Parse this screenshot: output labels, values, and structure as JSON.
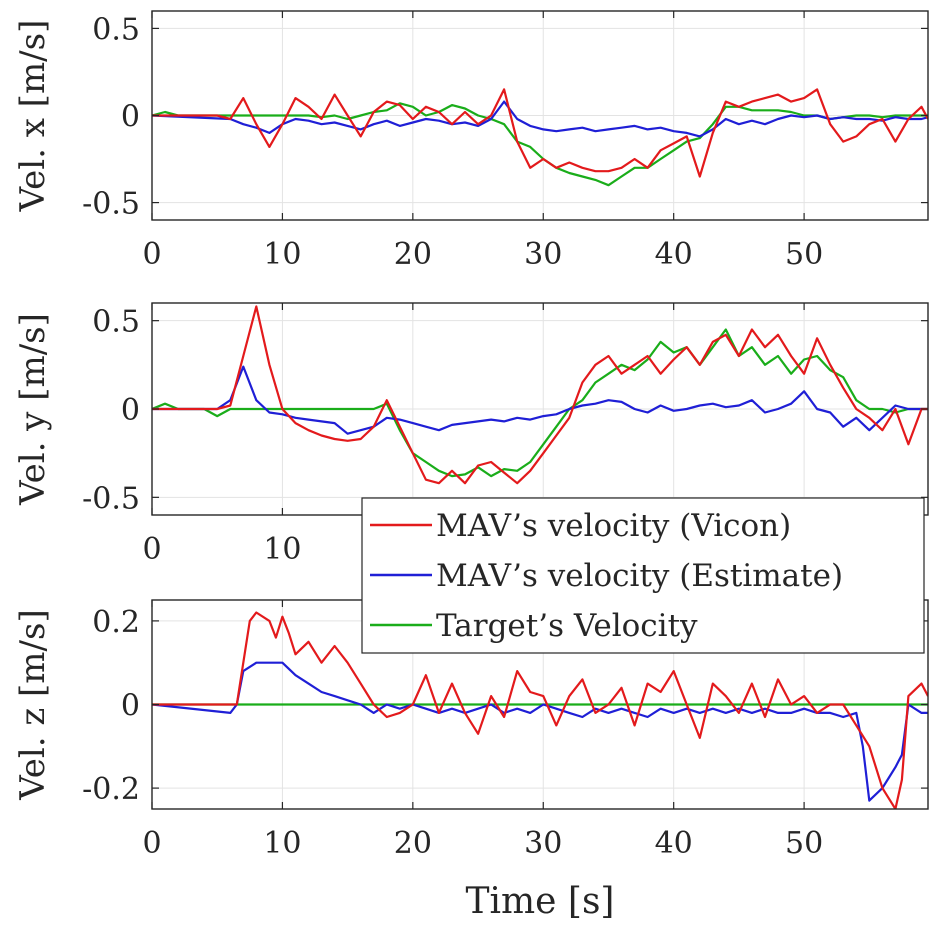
{
  "chart_data": [
    {
      "type": "line",
      "ylabel": "Vel. x [m/s]",
      "xlabel": "",
      "xlim": [
        0,
        59.5
      ],
      "ylim": [
        -0.6,
        0.6
      ],
      "xticks": [
        0,
        10,
        20,
        30,
        40,
        50
      ],
      "yticks": [
        0.5,
        0,
        -0.5
      ],
      "xtick_labels": [
        "0",
        "10",
        "20",
        "30",
        "40",
        "50"
      ],
      "ytick_labels": [
        "0.5",
        "0",
        "-0.5"
      ],
      "grid": true,
      "series": [
        {
          "name": "MAV's velocity (Vicon)",
          "color": "#e31a1c",
          "x": [
            0,
            5,
            6,
            7,
            8,
            9,
            10,
            11,
            12,
            13,
            14,
            15,
            16,
            17,
            18,
            19,
            20,
            21,
            22,
            23,
            24,
            25,
            26,
            27,
            28,
            29,
            30,
            31,
            32,
            33,
            34,
            35,
            36,
            37,
            38,
            39,
            40,
            41,
            42,
            43,
            44,
            45,
            46,
            47,
            48,
            49,
            50,
            51,
            52,
            53,
            54,
            55,
            56,
            57,
            58,
            59,
            59.5
          ],
          "y": [
            0,
            0,
            -0.02,
            0.1,
            -0.05,
            -0.18,
            -0.05,
            0.1,
            0.05,
            -0.02,
            0.12,
            0.0,
            -0.12,
            0.02,
            0.08,
            0.06,
            -0.02,
            0.05,
            0.02,
            -0.05,
            0.02,
            -0.05,
            0.0,
            0.15,
            -0.15,
            -0.3,
            -0.25,
            -0.3,
            -0.27,
            -0.3,
            -0.32,
            -0.32,
            -0.3,
            -0.25,
            -0.3,
            -0.2,
            -0.16,
            -0.12,
            -0.35,
            -0.1,
            0.08,
            0.05,
            0.08,
            0.1,
            0.12,
            0.08,
            0.1,
            0.15,
            -0.05,
            -0.15,
            -0.12,
            -0.05,
            -0.02,
            -0.15,
            -0.02,
            0.05,
            -0.02
          ]
        },
        {
          "name": "MAV's velocity (Estimate)",
          "color": "#1f1fd6",
          "x": [
            0,
            6,
            7,
            8,
            9,
            10,
            11,
            12,
            13,
            14,
            15,
            16,
            17,
            18,
            19,
            20,
            21,
            22,
            23,
            24,
            25,
            26,
            27,
            28,
            29,
            30,
            31,
            32,
            33,
            34,
            35,
            36,
            37,
            38,
            39,
            40,
            41,
            42,
            43,
            44,
            45,
            46,
            47,
            48,
            49,
            50,
            51,
            52,
            53,
            54,
            55,
            56,
            57,
            58,
            59,
            59.5
          ],
          "y": [
            0,
            -0.02,
            -0.05,
            -0.07,
            -0.1,
            -0.05,
            -0.02,
            -0.03,
            -0.05,
            -0.04,
            -0.06,
            -0.08,
            -0.05,
            -0.03,
            -0.06,
            -0.04,
            -0.02,
            -0.03,
            -0.05,
            -0.04,
            -0.06,
            -0.02,
            0.08,
            -0.02,
            -0.06,
            -0.08,
            -0.09,
            -0.08,
            -0.07,
            -0.09,
            -0.08,
            -0.07,
            -0.06,
            -0.08,
            -0.07,
            -0.09,
            -0.1,
            -0.12,
            -0.08,
            -0.02,
            -0.05,
            -0.03,
            -0.05,
            -0.02,
            0.0,
            -0.01,
            0.0,
            -0.02,
            -0.01,
            -0.02,
            -0.02,
            -0.03,
            -0.01,
            -0.02,
            -0.02,
            -0.01
          ]
        },
        {
          "name": "Target's Velocity",
          "color": "#1aad1a",
          "x": [
            0,
            1,
            2,
            3,
            4,
            5,
            6,
            7,
            8,
            9,
            10,
            11,
            12,
            13,
            14,
            15,
            16,
            17,
            18,
            19,
            20,
            21,
            22,
            23,
            24,
            25,
            26,
            27,
            28,
            29,
            30,
            31,
            32,
            33,
            34,
            35,
            36,
            37,
            38,
            39,
            40,
            41,
            42,
            43,
            44,
            45,
            46,
            47,
            48,
            49,
            50,
            51,
            52,
            53,
            54,
            55,
            56,
            57,
            58,
            59,
            59.5
          ],
          "y": [
            0,
            0.02,
            0,
            0,
            0,
            0,
            0,
            0,
            0,
            0,
            0,
            0,
            0,
            -0.01,
            0,
            -0.02,
            0,
            0.02,
            0.03,
            0.07,
            0.05,
            0,
            0.02,
            0.06,
            0.04,
            0.0,
            -0.02,
            -0.05,
            -0.15,
            -0.18,
            -0.25,
            -0.3,
            -0.33,
            -0.35,
            -0.37,
            -0.4,
            -0.35,
            -0.3,
            -0.3,
            -0.25,
            -0.2,
            -0.15,
            -0.13,
            -0.05,
            0.05,
            0.05,
            0.03,
            0.03,
            0.03,
            0.02,
            0.0,
            0.0,
            -0.02,
            -0.01,
            0.0,
            0.0,
            -0.01,
            0.0,
            0.0,
            0.0,
            0.0
          ]
        }
      ]
    },
    {
      "type": "line",
      "ylabel": "Vel. y [m/s]",
      "xlabel": "",
      "xlim": [
        0,
        59.5
      ],
      "ylim": [
        -0.6,
        0.6
      ],
      "xticks": [
        0,
        10,
        20,
        30,
        40,
        50
      ],
      "yticks": [
        0.5,
        0,
        -0.5
      ],
      "xtick_labels": [
        "0",
        "10",
        "20",
        "30",
        "40",
        "50"
      ],
      "ytick_labels": [
        "0.5",
        "0",
        "-0.5"
      ],
      "grid": true,
      "series": [
        {
          "name": "MAV's velocity (Vicon)",
          "color": "#e31a1c",
          "x": [
            0,
            5,
            6,
            7,
            8,
            9,
            10,
            11,
            12,
            13,
            14,
            15,
            16,
            17,
            18,
            19,
            20,
            21,
            22,
            23,
            24,
            25,
            26,
            27,
            28,
            29,
            30,
            31,
            32,
            33,
            34,
            35,
            36,
            37,
            38,
            39,
            40,
            41,
            42,
            43,
            44,
            45,
            46,
            47,
            48,
            49,
            50,
            51,
            52,
            53,
            54,
            55,
            56,
            57,
            58,
            59,
            59.5
          ],
          "y": [
            0,
            0,
            0.02,
            0.3,
            0.58,
            0.25,
            0.0,
            -0.08,
            -0.12,
            -0.15,
            -0.17,
            -0.18,
            -0.17,
            -0.1,
            0.05,
            -0.1,
            -0.25,
            -0.4,
            -0.42,
            -0.35,
            -0.42,
            -0.32,
            -0.3,
            -0.36,
            -0.42,
            -0.35,
            -0.25,
            -0.15,
            -0.05,
            0.15,
            0.25,
            0.3,
            0.2,
            0.25,
            0.3,
            0.2,
            0.28,
            0.35,
            0.25,
            0.38,
            0.42,
            0.3,
            0.45,
            0.35,
            0.42,
            0.3,
            0.2,
            0.4,
            0.25,
            0.12,
            0.0,
            -0.05,
            -0.12,
            0.0,
            -0.2,
            0.0,
            0.0
          ]
        },
        {
          "name": "MAV's velocity (Estimate)",
          "color": "#1f1fd6",
          "x": [
            0,
            5,
            6,
            7,
            8,
            9,
            10,
            11,
            12,
            13,
            14,
            15,
            16,
            17,
            18,
            19,
            20,
            21,
            22,
            23,
            24,
            25,
            26,
            27,
            28,
            29,
            30,
            31,
            32,
            33,
            34,
            35,
            36,
            37,
            38,
            39,
            40,
            41,
            42,
            43,
            44,
            45,
            46,
            47,
            48,
            49,
            50,
            51,
            52,
            53,
            54,
            55,
            56,
            57,
            58,
            59,
            59.5
          ],
          "y": [
            0,
            0,
            0.05,
            0.24,
            0.05,
            -0.02,
            -0.03,
            -0.05,
            -0.06,
            -0.07,
            -0.08,
            -0.14,
            -0.12,
            -0.1,
            -0.05,
            -0.06,
            -0.08,
            -0.1,
            -0.12,
            -0.09,
            -0.08,
            -0.07,
            -0.06,
            -0.07,
            -0.05,
            -0.06,
            -0.04,
            -0.03,
            0.0,
            0.02,
            0.03,
            0.05,
            0.04,
            0.0,
            -0.02,
            0.02,
            -0.01,
            0.0,
            0.02,
            0.03,
            0.01,
            0.02,
            0.05,
            -0.02,
            0.0,
            0.03,
            0.1,
            0.0,
            -0.02,
            -0.1,
            -0.05,
            -0.12,
            -0.05,
            0.02,
            0.0,
            0.0,
            0.0
          ]
        },
        {
          "name": "Target's Velocity",
          "color": "#1aad1a",
          "x": [
            0,
            1,
            2,
            3,
            4,
            5,
            6,
            7,
            8,
            9,
            10,
            11,
            12,
            13,
            14,
            15,
            16,
            17,
            18,
            19,
            20,
            21,
            22,
            23,
            24,
            25,
            26,
            27,
            28,
            29,
            30,
            31,
            32,
            33,
            34,
            35,
            36,
            37,
            38,
            39,
            40,
            41,
            42,
            43,
            44,
            45,
            46,
            47,
            48,
            49,
            50,
            51,
            52,
            53,
            54,
            55,
            56,
            57,
            58,
            59,
            59.5
          ],
          "y": [
            0,
            0.03,
            0,
            0,
            0,
            -0.04,
            0,
            0,
            0,
            0,
            0,
            0,
            0,
            0,
            0,
            0,
            0.0,
            0.0,
            0.03,
            -0.12,
            -0.25,
            -0.3,
            -0.35,
            -0.38,
            -0.37,
            -0.33,
            -0.38,
            -0.34,
            -0.35,
            -0.3,
            -0.2,
            -0.1,
            0.0,
            0.05,
            0.15,
            0.2,
            0.25,
            0.22,
            0.28,
            0.38,
            0.32,
            0.35,
            0.25,
            0.35,
            0.45,
            0.3,
            0.35,
            0.25,
            0.3,
            0.2,
            0.28,
            0.3,
            0.22,
            0.18,
            0.05,
            0.0,
            0.0,
            -0.02,
            0.0,
            0.0,
            0.0
          ]
        }
      ]
    },
    {
      "type": "line",
      "ylabel": "Vel. z [m/s]",
      "xlabel": "Time [s]",
      "xlim": [
        0,
        59.5
      ],
      "ylim": [
        -0.25,
        0.25
      ],
      "xticks": [
        0,
        10,
        20,
        30,
        40,
        50
      ],
      "yticks": [
        0.2,
        0,
        -0.2
      ],
      "xtick_labels": [
        "0",
        "10",
        "20",
        "30",
        "40",
        "50"
      ],
      "ytick_labels": [
        "0.2",
        "0",
        "-0.2"
      ],
      "grid": true,
      "series": [
        {
          "name": "MAV's velocity (Vicon)",
          "color": "#e31a1c",
          "x": [
            0,
            6,
            6.5,
            7,
            7.5,
            8,
            9,
            9.5,
            10,
            10.5,
            11,
            12,
            13,
            14,
            15,
            16,
            17,
            18,
            19,
            20,
            21,
            22,
            23,
            24,
            25,
            26,
            27,
            28,
            29,
            30,
            31,
            32,
            33,
            34,
            35,
            36,
            37,
            38,
            39,
            40,
            41,
            42,
            43,
            44,
            45,
            46,
            47,
            48,
            49,
            50,
            51,
            52,
            53,
            54,
            55,
            56,
            57,
            57.5,
            58,
            59,
            59.5
          ],
          "y": [
            0,
            0,
            0.0,
            0.1,
            0.2,
            0.22,
            0.2,
            0.16,
            0.21,
            0.17,
            0.12,
            0.15,
            0.1,
            0.14,
            0.1,
            0.05,
            0.0,
            -0.03,
            -0.02,
            0.0,
            0.07,
            -0.02,
            0.05,
            -0.02,
            -0.07,
            0.02,
            -0.03,
            0.08,
            0.03,
            0.02,
            -0.05,
            0.02,
            0.06,
            -0.02,
            0.0,
            0.04,
            -0.05,
            0.05,
            0.03,
            0.08,
            0.0,
            -0.08,
            0.05,
            0.02,
            -0.02,
            0.05,
            -0.03,
            0.06,
            0.0,
            0.02,
            -0.02,
            0.0,
            0.0,
            -0.05,
            -0.1,
            -0.2,
            -0.25,
            -0.18,
            0.02,
            0.05,
            0.02
          ]
        },
        {
          "name": "MAV's velocity (Estimate)",
          "color": "#1f1fd6",
          "x": [
            0,
            6,
            6.5,
            7,
            8,
            9,
            10,
            11,
            12,
            13,
            14,
            15,
            16,
            17,
            18,
            19,
            20,
            21,
            22,
            23,
            24,
            25,
            26,
            27,
            28,
            29,
            30,
            31,
            32,
            33,
            34,
            35,
            36,
            37,
            38,
            39,
            40,
            41,
            42,
            43,
            44,
            45,
            46,
            47,
            48,
            49,
            50,
            51,
            52,
            53,
            54,
            54.5,
            55,
            56,
            57,
            57.5,
            58,
            59,
            59.5
          ],
          "y": [
            0,
            -0.02,
            0.0,
            0.08,
            0.1,
            0.1,
            0.1,
            0.07,
            0.05,
            0.03,
            0.02,
            0.01,
            0.0,
            -0.02,
            0.0,
            -0.01,
            0.0,
            -0.01,
            -0.02,
            -0.01,
            -0.02,
            -0.01,
            0.0,
            -0.02,
            -0.01,
            -0.02,
            0.0,
            -0.01,
            -0.02,
            -0.03,
            -0.01,
            -0.02,
            -0.01,
            -0.02,
            -0.03,
            -0.01,
            -0.02,
            -0.01,
            -0.02,
            -0.01,
            -0.02,
            -0.01,
            -0.02,
            -0.01,
            -0.02,
            -0.02,
            -0.01,
            -0.02,
            -0.02,
            -0.03,
            -0.02,
            -0.1,
            -0.23,
            -0.2,
            -0.15,
            -0.12,
            0.0,
            -0.02,
            -0.02
          ]
        },
        {
          "name": "Target's Velocity",
          "color": "#1aad1a",
          "x": [
            0,
            10,
            20,
            30,
            40,
            50,
            54,
            55,
            56,
            59.5
          ],
          "y": [
            0.0,
            0.0,
            0.0,
            0.0,
            0.0,
            0.0,
            0.0,
            0.0,
            0.0,
            0.0
          ]
        }
      ]
    }
  ],
  "legend": {
    "position": "middle-right",
    "items": [
      {
        "label": "MAV’s velocity (Vicon)",
        "color": "#e31a1c"
      },
      {
        "label": "MAV’s velocity (Estimate)",
        "color": "#1f1fd6"
      },
      {
        "label": "Target’s Velocity",
        "color": "#1aad1a"
      }
    ]
  }
}
